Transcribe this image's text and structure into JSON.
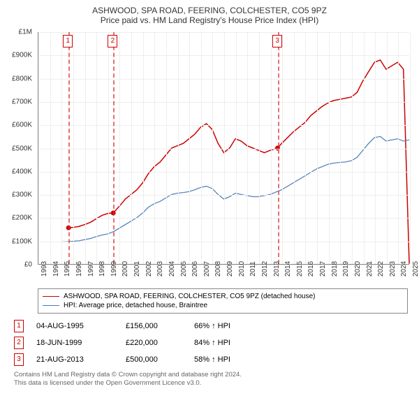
{
  "title": "ASHWOOD, SPA ROAD, FEERING, COLCHESTER, CO5 9PZ",
  "subtitle": "Price paid vs. HM Land Registry's House Price Index (HPI)",
  "chart": {
    "type": "line",
    "background_color": "#ffffff",
    "grid_color": "#eeeeee",
    "axis_color": "#888888",
    "xlim": [
      1993,
      2025
    ],
    "ylim": [
      0,
      1000000
    ],
    "yticks": [
      0,
      100000,
      200000,
      300000,
      400000,
      500000,
      600000,
      700000,
      800000,
      900000,
      1000000
    ],
    "ytick_labels": [
      "£0",
      "£100K",
      "£200K",
      "£300K",
      "£400K",
      "£500K",
      "£600K",
      "£700K",
      "£800K",
      "£900K",
      "£1M"
    ],
    "xticks": [
      1993,
      1994,
      1995,
      1996,
      1997,
      1998,
      1999,
      2000,
      2001,
      2002,
      2003,
      2004,
      2005,
      2006,
      2007,
      2008,
      2009,
      2010,
      2011,
      2012,
      2013,
      2014,
      2015,
      2016,
      2017,
      2018,
      2019,
      2020,
      2021,
      2022,
      2023,
      2024,
      2025
    ],
    "label_fontsize": 10,
    "title_fontsize": 12,
    "series": [
      {
        "name": "ASHWOOD, SPA ROAD, FEERING, COLCHESTER, CO5 9PZ (detached house)",
        "color": "#cc0000",
        "line_width": 1.5,
        "x": [
          1995.6,
          1996,
          1996.5,
          1997,
          1997.5,
          1998,
          1998.5,
          1999,
          1999.46,
          2000,
          2000.5,
          2001,
          2001.5,
          2002,
          2002.5,
          2003,
          2003.5,
          2004,
          2004.5,
          2005,
          2005.5,
          2006,
          2006.5,
          2007,
          2007.5,
          2008,
          2008.5,
          2009,
          2009.5,
          2010,
          2010.5,
          2011,
          2011.5,
          2012,
          2012.5,
          2013,
          2013.64,
          2014,
          2014.5,
          2015,
          2015.5,
          2016,
          2016.5,
          2017,
          2017.5,
          2018,
          2018.5,
          2019,
          2019.5,
          2020,
          2020.5,
          2021,
          2021.5,
          2022,
          2022.5,
          2023,
          2023.5,
          2024,
          2024.5,
          2025
        ],
        "y": [
          156000,
          158000,
          162000,
          170000,
          180000,
          195000,
          210000,
          218000,
          220000,
          250000,
          280000,
          300000,
          320000,
          350000,
          390000,
          420000,
          440000,
          470000,
          500000,
          510000,
          520000,
          540000,
          560000,
          590000,
          605000,
          580000,
          520000,
          480000,
          500000,
          540000,
          530000,
          510000,
          500000,
          490000,
          480000,
          490000,
          500000,
          520000,
          545000,
          570000,
          590000,
          610000,
          640000,
          660000,
          680000,
          695000,
          705000,
          710000,
          715000,
          720000,
          740000,
          790000,
          830000,
          870000,
          880000,
          840000,
          855000,
          870000,
          840000,
          860
        ]
      },
      {
        "name": "HPI: Average price, detached house, Braintree",
        "color": "#4a7bb5",
        "line_width": 1.2,
        "x": [
          1995,
          1995.5,
          1996,
          1996.5,
          1997,
          1997.5,
          1998,
          1998.5,
          1999,
          1999.5,
          2000,
          2000.5,
          2001,
          2001.5,
          2002,
          2002.5,
          2003,
          2003.5,
          2004,
          2004.5,
          2005,
          2005.5,
          2006,
          2006.5,
          2007,
          2007.5,
          2008,
          2008.5,
          2009,
          2009.5,
          2010,
          2010.5,
          2011,
          2011.5,
          2012,
          2012.5,
          2013,
          2013.5,
          2014,
          2014.5,
          2015,
          2015.5,
          2016,
          2016.5,
          2017,
          2017.5,
          2018,
          2018.5,
          2019,
          2019.5,
          2020,
          2020.5,
          2021,
          2021.5,
          2022,
          2022.5,
          2023,
          2023.5,
          2024,
          2024.5,
          2025
        ],
        "y": [
          95000,
          96000,
          98000,
          100000,
          105000,
          110000,
          118000,
          125000,
          130000,
          140000,
          155000,
          170000,
          185000,
          200000,
          220000,
          245000,
          260000,
          270000,
          285000,
          300000,
          305000,
          308000,
          312000,
          320000,
          330000,
          335000,
          325000,
          300000,
          280000,
          290000,
          305000,
          300000,
          295000,
          290000,
          290000,
          295000,
          300000,
          310000,
          320000,
          335000,
          350000,
          365000,
          380000,
          395000,
          410000,
          420000,
          430000,
          435000,
          438000,
          440000,
          445000,
          460000,
          490000,
          520000,
          545000,
          550000,
          530000,
          535000,
          540000,
          530000,
          535000
        ]
      }
    ],
    "sale_markers": [
      {
        "n": "1",
        "x": 1995.6,
        "y": 156000
      },
      {
        "n": "2",
        "x": 1999.46,
        "y": 220000
      },
      {
        "n": "3",
        "x": 2013.64,
        "y": 500000
      }
    ],
    "sale_point_color": "#cc0000",
    "sale_line_color": "#dd3333"
  },
  "legend": {
    "items": [
      {
        "color": "#cc0000",
        "label": "ASHWOOD, SPA ROAD, FEERING, COLCHESTER, CO5 9PZ (detached house)"
      },
      {
        "color": "#4a7bb5",
        "label": "HPI: Average price, detached house, Braintree"
      }
    ]
  },
  "table": {
    "rows": [
      {
        "n": "1",
        "date": "04-AUG-1995",
        "price": "£156,000",
        "pct": "66% ↑ HPI"
      },
      {
        "n": "2",
        "date": "18-JUN-1999",
        "price": "£220,000",
        "pct": "84% ↑ HPI"
      },
      {
        "n": "3",
        "date": "21-AUG-2013",
        "price": "£500,000",
        "pct": "58% ↑ HPI"
      }
    ]
  },
  "footer_line1": "Contains HM Land Registry data © Crown copyright and database right 2024.",
  "footer_line2": "This data is licensed under the Open Government Licence v3.0."
}
